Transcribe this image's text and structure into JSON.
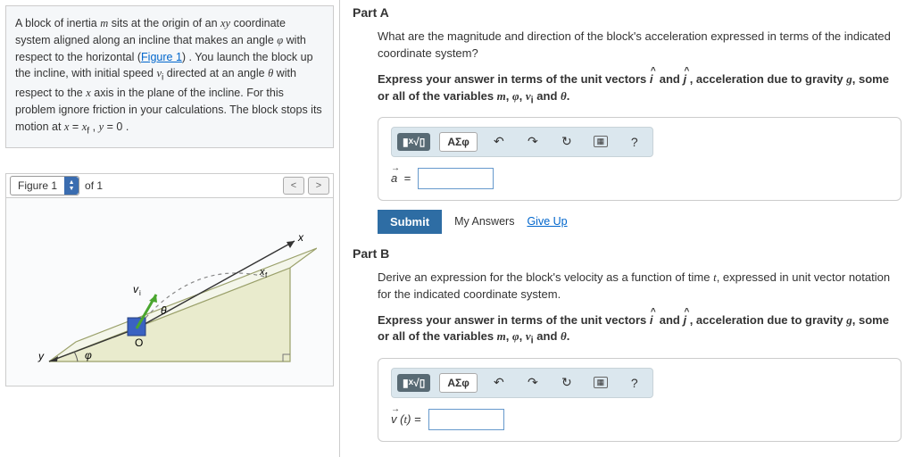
{
  "problem": {
    "text_html": "A block of inertia <i class='mi'>m</i> sits at the origin of an <i class='mi'>xy</i> coordinate system aligned along an incline that makes an angle <i class='mi'>&phi;</i> with respect to the horizontal (<a class='figlink' href='#'>Figure 1</a>) . You launch the block up the incline, with initial speed <i class='mi'>v</i><sub>i</sub> directed at an angle <i class='mi'>&theta;</i> with respect to the <i class='mi'>x</i> axis in the plane of the incline. For this problem ignore friction in your calculations. The block stops its motion at <i class='mi'>x</i> = <i class='mi'>x</i><sub>f</sub> , <i class='mi'>y</i> = 0 ."
  },
  "figure": {
    "tab_label": "Figure 1",
    "of_text": "of 1",
    "prev": "<",
    "next": ">",
    "labels": {
      "x": "x",
      "y": "y",
      "xf": "xf",
      "vi": "v_i",
      "theta": "θ",
      "phi": "φ",
      "origin": "O"
    }
  },
  "partA": {
    "title": "Part A",
    "question": "What are the magnitude and direction of the block's acceleration expressed in terms of the indicated coordinate system?",
    "instr_html": "<b>Express your answer in terms of the unit vectors <span class='hat'>i</span>&nbsp; and <span class='hat'>j</span>&nbsp;, acceleration due to gravity <i class='mi'>g</i>, some or all of the variables <i class='mi'>m</i>, <i class='mi'>&phi;</i>, <i class='mi'>v</i><sub>i</sub> and <i class='mi'>&theta;</i>.</b>",
    "eq_label_html": "<span class='vec'>a</span>&nbsp; =",
    "submit": "Submit",
    "my_answers": "My Answers",
    "give_up": "Give Up"
  },
  "partB": {
    "title": "Part B",
    "question_html": "Derive an expression for the block's velocity as a function of time <i class='mi'>t</i>, expressed in unit vector notation for the indicated coordinate system.",
    "instr_html": "<b>Express your answer in terms of the unit vectors <span class='hat'>i</span>&nbsp; and <span class='hat'>j</span>&nbsp;, acceleration due to gravity <i class='mi'>g</i>, some or all of the variables <i class='mi'>m</i>, <i class='mi'>&phi;</i>, <i class='mi'>v</i><sub>i</sub> and <i class='mi'>&theta;</i>.</b>",
    "eq_label_html": "<span class='vec'>v</span>&nbsp;(<i class='mi'>t</i>) ="
  },
  "toolbar": {
    "templates": "x^a&radic;",
    "greek": "ΑΣφ",
    "undo": "↶",
    "redo": "↷",
    "reset": "↻",
    "keyboard": "⌨",
    "help": "?"
  },
  "colors": {
    "panel_bg": "#f5f7f9",
    "toolbar_bg": "#dbe7ee",
    "submit_bg": "#2e6da4",
    "link": "#0066cc"
  },
  "diagram": {
    "type": "physics-incline",
    "background": "#fafbfc",
    "incline_fill": "#e9ebcd",
    "incline_stroke": "#9aa06a",
    "top_face_fill": "#f4f6ea",
    "block_fill": "#3a62c2",
    "block_stroke": "#263f7d",
    "arrow_green": "#4aa62f",
    "axis_color": "#333333",
    "dash_color": "#888888",
    "phi_arc_color": "#555555"
  }
}
